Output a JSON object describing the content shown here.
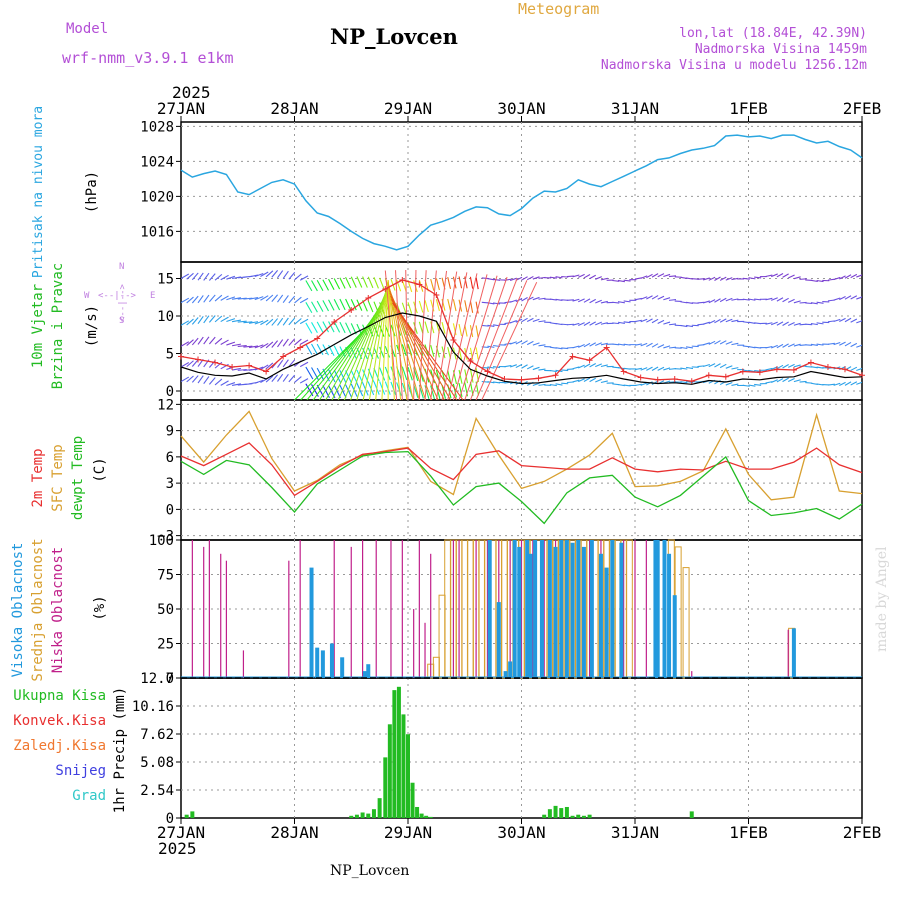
{
  "header": {
    "model_label": "Model",
    "model_value": "wrf-nmm_v3.9.1 e1km",
    "station": "NP_Lovcen",
    "product": "Meteogram",
    "lonlat": "lon,lat (18.84E, 42.39N)",
    "altitude": "Nadmorska Visina 1459m",
    "model_altitude": "Nadmorska Visina u modelu 1256.12m",
    "footer_station": "NP_Lovcen",
    "watermark": "made by Angel"
  },
  "time_axis": {
    "year": "2025",
    "labels": [
      "27JAN",
      "28JAN",
      "29JAN",
      "30JAN",
      "31JAN",
      "1FEB",
      "2FEB"
    ],
    "range_days": [
      0,
      6
    ]
  },
  "colors": {
    "pressure": "#2aa6e0",
    "wind_label": "#22bb22",
    "wind_speed": "#000000",
    "gust": "#e83030",
    "temp2m": "#e83030",
    "sfc": "#d8a030",
    "dewpt": "#22bb22",
    "cloud_high": "#2299dd",
    "cloud_mid": "#d8a030",
    "cloud_low": "#c0208a",
    "precip": "#22bb22",
    "header_purple": "#b34fd6",
    "header_orange": "#e0a840",
    "arrow_purple": "#c080e0"
  },
  "chart_data": [
    {
      "type": "line",
      "name": "pressure",
      "ylabel_lines": [
        "Pritisak na nivou mora",
        "(hPa)"
      ],
      "ylim": [
        1012.5,
        1028.5
      ],
      "yticks": [
        1016,
        1020,
        1024,
        1028
      ],
      "x": [
        0,
        0.1,
        0.2,
        0.3,
        0.4,
        0.5,
        0.6,
        0.7,
        0.8,
        0.9,
        1.0,
        1.1,
        1.2,
        1.3,
        1.4,
        1.5,
        1.6,
        1.7,
        1.8,
        1.9,
        2.0,
        2.1,
        2.2,
        2.3,
        2.4,
        2.5,
        2.6,
        2.7,
        2.8,
        2.9,
        3.0,
        3.1,
        3.2,
        3.3,
        3.4,
        3.5,
        3.6,
        3.7,
        3.8,
        3.9,
        4.0,
        4.1,
        4.2,
        4.3,
        4.4,
        4.5,
        4.6,
        4.7,
        4.8,
        4.9,
        5.0,
        5.1,
        5.2,
        5.3,
        5.4,
        5.5,
        5.6,
        5.7,
        5.8,
        5.9,
        6.0
      ],
      "series": [
        {
          "name": "pressure",
          "values": [
            1023.0,
            1022.2,
            1022.6,
            1022.9,
            1022.5,
            1020.5,
            1020.2,
            1020.9,
            1021.6,
            1021.9,
            1021.4,
            1019.5,
            1018.1,
            1017.7,
            1016.9,
            1016.0,
            1015.2,
            1014.6,
            1014.3,
            1013.9,
            1014.3,
            1015.6,
            1016.7,
            1017.1,
            1017.6,
            1018.3,
            1018.8,
            1018.7,
            1018.0,
            1017.8,
            1018.6,
            1019.8,
            1020.6,
            1020.5,
            1020.9,
            1021.9,
            1021.4,
            1021.1,
            1021.7,
            1022.3,
            1022.9,
            1023.5,
            1024.2,
            1024.4,
            1024.9,
            1025.3,
            1025.5,
            1025.8,
            1026.9,
            1027.0,
            1026.8,
            1026.9,
            1026.6,
            1027.0,
            1027.0,
            1026.5,
            1026.1,
            1026.3,
            1025.7,
            1025.3,
            1024.4
          ]
        }
      ]
    },
    {
      "type": "line",
      "name": "wind",
      "ylabel_lines": [
        "10m Vjetar",
        "Brzina i Pravac",
        "(m/s)"
      ],
      "compass": [
        "N",
        "S",
        "W",
        "E",
        "->",
        "<-"
      ],
      "ylim": [
        -1.2,
        17.2
      ],
      "yticks": [
        0,
        5,
        10,
        15
      ],
      "x": [
        0,
        0.15,
        0.3,
        0.45,
        0.6,
        0.75,
        0.9,
        1.05,
        1.2,
        1.35,
        1.5,
        1.65,
        1.8,
        1.95,
        2.1,
        2.25,
        2.4,
        2.55,
        2.7,
        2.85,
        3.0,
        3.15,
        3.3,
        3.45,
        3.6,
        3.75,
        3.9,
        4.05,
        4.2,
        4.35,
        4.5,
        4.65,
        4.8,
        4.95,
        5.1,
        5.25,
        5.4,
        5.55,
        5.7,
        5.85,
        6.0
      ],
      "series": [
        {
          "name": "speed",
          "values": [
            3.2,
            2.5,
            2.1,
            2.0,
            2.4,
            1.6,
            2.9,
            3.9,
            4.9,
            6.2,
            7.5,
            8.6,
            9.8,
            10.4,
            10.0,
            9.3,
            5.2,
            2.9,
            2.0,
            1.3,
            1.0,
            1.1,
            1.4,
            1.7,
            1.8,
            2.1,
            1.6,
            1.2,
            1.0,
            1.1,
            0.9,
            1.4,
            1.2,
            1.6,
            1.5,
            1.8,
            1.9,
            2.6,
            2.2,
            1.8,
            1.9
          ]
        },
        {
          "name": "gust",
          "values": [
            4.6,
            4.2,
            3.8,
            3.2,
            3.4,
            2.6,
            4.6,
            5.8,
            7.0,
            9.2,
            10.8,
            12.4,
            13.6,
            14.8,
            14.2,
            12.8,
            6.8,
            4.0,
            2.6,
            1.6,
            1.5,
            1.7,
            2.1,
            4.6,
            4.1,
            5.8,
            2.6,
            1.8,
            1.5,
            1.6,
            1.3,
            2.1,
            1.9,
            2.6,
            2.5,
            2.9,
            2.8,
            3.8,
            3.2,
            2.9,
            2.1
          ]
        }
      ]
    },
    {
      "type": "line",
      "name": "temperature",
      "ylabel_lines": [
        "2m Temp",
        "SFC Temp",
        "dewpt Temp",
        "(C)"
      ],
      "ylim": [
        -3.5,
        12.5
      ],
      "yticks": [
        -3,
        0,
        3,
        6,
        9,
        12
      ],
      "x": [
        0,
        0.2,
        0.4,
        0.6,
        0.8,
        1.0,
        1.2,
        1.4,
        1.6,
        1.8,
        2.0,
        2.2,
        2.4,
        2.6,
        2.8,
        3.0,
        3.2,
        3.4,
        3.6,
        3.8,
        4.0,
        4.2,
        4.4,
        4.6,
        4.8,
        5.0,
        5.2,
        5.4,
        5.6,
        5.8,
        6.0
      ],
      "series": [
        {
          "name": "2m Temp",
          "values": [
            6.1,
            5.0,
            6.3,
            7.6,
            5.1,
            1.6,
            3.2,
            4.9,
            6.3,
            6.6,
            7.0,
            4.7,
            3.4,
            6.3,
            6.7,
            5.0,
            4.8,
            4.6,
            4.6,
            5.9,
            4.6,
            4.3,
            4.6,
            4.5,
            5.5,
            4.6,
            4.6,
            5.4,
            7.0,
            5.1,
            4.2
          ]
        },
        {
          "name": "SFC Temp",
          "values": [
            8.4,
            5.4,
            8.5,
            11.2,
            5.8,
            2.1,
            3.3,
            5.1,
            6.2,
            6.7,
            7.1,
            3.2,
            1.7,
            10.4,
            6.2,
            2.4,
            3.2,
            4.6,
            6.2,
            8.7,
            2.6,
            2.7,
            3.2,
            4.4,
            9.2,
            4.0,
            1.1,
            1.4,
            10.8,
            2.1,
            1.8
          ]
        },
        {
          "name": "dewpt Temp",
          "values": [
            5.5,
            4.0,
            5.6,
            5.1,
            2.5,
            -0.3,
            2.9,
            4.5,
            6.1,
            6.5,
            6.6,
            3.8,
            0.5,
            2.6,
            3.0,
            0.9,
            -1.6,
            1.9,
            3.6,
            3.9,
            1.4,
            0.3,
            1.6,
            3.8,
            6.0,
            1.0,
            -0.7,
            -0.4,
            0.1,
            -1.1,
            0.6
          ]
        }
      ]
    },
    {
      "type": "bar",
      "name": "cloud",
      "ylabel_lines": [
        "Visoka Oblacnost",
        "Srednja Oblacnost",
        "Niska Oblacnost",
        "(%)"
      ],
      "ylim": [
        0,
        100
      ],
      "yticks": [
        0,
        25,
        50,
        75,
        100
      ],
      "series": [
        {
          "name": "Visoka Oblacnost",
          "x": [
            1.15,
            1.2,
            1.25,
            1.33,
            1.42,
            1.62,
            1.65,
            2.72,
            2.8,
            2.86,
            2.9,
            2.94,
            2.98,
            3.05,
            3.08,
            3.12,
            3.18,
            3.25,
            3.3,
            3.35,
            3.4,
            3.45,
            3.5,
            3.55,
            3.62,
            3.7,
            3.75,
            3.8,
            3.88,
            4.18,
            4.2,
            4.26,
            4.3,
            4.35,
            5.4
          ],
          "values": [
            80,
            22,
            20,
            25,
            15,
            5,
            10,
            100,
            55,
            5,
            12,
            100,
            95,
            100,
            90,
            100,
            100,
            100,
            95,
            100,
            100,
            98,
            100,
            95,
            100,
            90,
            80,
            100,
            98,
            100,
            100,
            100,
            90,
            60,
            36
          ]
        },
        {
          "name": "Srednja Oblacnost",
          "x": [
            2.2,
            2.25,
            2.3,
            2.35,
            2.4,
            2.45,
            2.5,
            2.55,
            2.6,
            2.65,
            2.7,
            2.75,
            2.8,
            2.85,
            2.9,
            2.95,
            3.0,
            3.05,
            3.1,
            3.15,
            3.2,
            3.25,
            3.3,
            3.35,
            3.4,
            3.45,
            3.5,
            3.55,
            3.6,
            3.65,
            3.7,
            3.75,
            3.8,
            3.85,
            3.9,
            3.95,
            4.32,
            4.38,
            4.45,
            5.38
          ],
          "values": [
            10,
            15,
            60,
            100,
            100,
            100,
            100,
            100,
            100,
            100,
            100,
            100,
            100,
            100,
            100,
            100,
            100,
            100,
            100,
            100,
            100,
            100,
            100,
            100,
            100,
            100,
            100,
            100,
            100,
            100,
            100,
            100,
            100,
            100,
            100,
            100,
            100,
            95,
            80,
            36
          ]
        },
        {
          "name": "Niska Oblacnost",
          "x": [
            0.1,
            0.2,
            0.25,
            0.35,
            0.4,
            0.55,
            0.95,
            1.05,
            1.35,
            1.5,
            1.6,
            1.72,
            1.85,
            1.95,
            2.05,
            2.1,
            2.15,
            2.2,
            2.4,
            2.45,
            2.6,
            2.7,
            2.8,
            2.9,
            2.95,
            3.0,
            3.1,
            3.2,
            3.3,
            3.4,
            3.5,
            3.6,
            3.7,
            3.8,
            3.9,
            4.0,
            4.1,
            4.2,
            4.3,
            4.5,
            5.35
          ],
          "values": [
            100,
            95,
            100,
            90,
            85,
            20,
            85,
            100,
            100,
            95,
            100,
            100,
            100,
            100,
            50,
            100,
            40,
            90,
            100,
            100,
            100,
            100,
            100,
            100,
            100,
            100,
            100,
            100,
            100,
            100,
            100,
            100,
            100,
            100,
            100,
            100,
            100,
            100,
            30,
            5,
            35
          ]
        }
      ]
    },
    {
      "type": "bar",
      "name": "precipitation",
      "ylabel_lines": [
        "1hr Precip (mm)"
      ],
      "legend": [
        "Ukupna Kisa",
        "Konvek.Kisa",
        "Zaledj.Kisa",
        "Snijeg",
        "Grad"
      ],
      "ylim": [
        0,
        12.7
      ],
      "yticks": [
        0,
        2.54,
        5.08,
        7.62,
        10.16,
        12.7
      ],
      "ytick_labels": [
        "0",
        "2.54",
        "5.08",
        "7.62",
        "10.16",
        "12.7"
      ],
      "x": [
        0.05,
        0.1,
        1.5,
        1.55,
        1.6,
        1.65,
        1.7,
        1.75,
        1.8,
        1.84,
        1.88,
        1.92,
        1.96,
        2.0,
        2.04,
        2.08,
        2.12,
        2.16,
        2.2,
        3.2,
        3.25,
        3.3,
        3.35,
        3.4,
        3.45,
        3.5,
        3.55,
        3.6,
        4.5
      ],
      "series": [
        {
          "name": "Ukupna Kisa",
          "values": [
            0.3,
            0.6,
            0.2,
            0.3,
            0.5,
            0.4,
            0.8,
            1.8,
            5.5,
            8.5,
            11.6,
            11.9,
            9.4,
            7.6,
            3.2,
            1.0,
            0.4,
            0.2,
            0.1,
            0.3,
            0.8,
            1.1,
            0.9,
            1.0,
            0.2,
            0.3,
            0.2,
            0.3,
            0.6
          ]
        }
      ]
    }
  ]
}
